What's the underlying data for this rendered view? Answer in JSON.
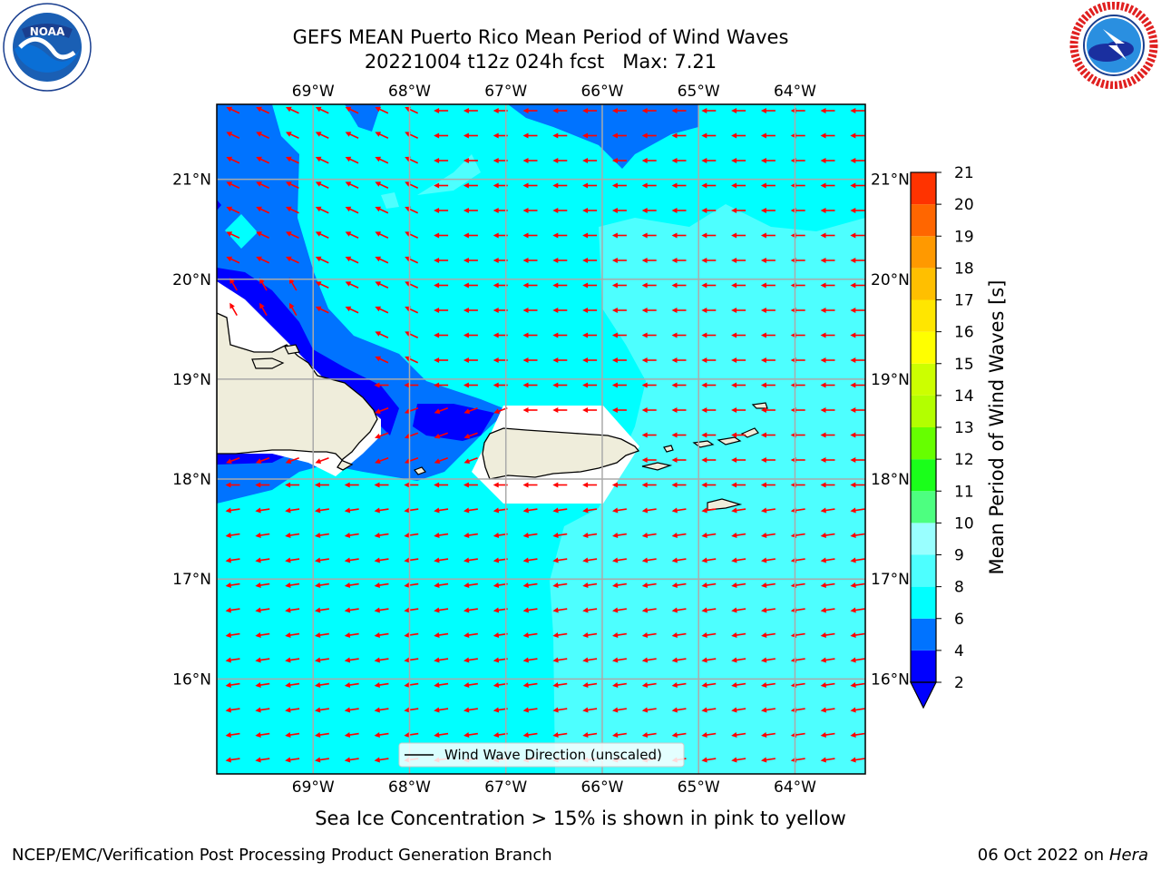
{
  "title_line1": "GEFS MEAN Puerto Rico Mean Period of Wind Waves",
  "title_line2": "20221004 t12z 024h fcst   Max: 7.21",
  "map": {
    "lon_labels": [
      "69°W",
      "68°W",
      "67°W",
      "66°W",
      "65°W",
      "64°W"
    ],
    "lon_values": [
      -69,
      -68,
      -67,
      -66,
      -65,
      -64
    ],
    "lat_labels": [
      "21°N",
      "20°N",
      "19°N",
      "18°N",
      "17°N",
      "16°N"
    ],
    "lat_values": [
      21,
      20,
      19,
      18,
      17,
      16
    ],
    "lon_range": [
      -70.0,
      -63.27
    ],
    "lat_range": [
      15.05,
      21.75
    ],
    "legend_label": "Wind Wave Direction (unscaled)",
    "ocean_color": "#00ffff",
    "arrow_color": "#ff0000"
  },
  "colorbar": {
    "label": "Mean Period of Wind Waves [s]",
    "ticks": [
      "2",
      "4",
      "6",
      "8",
      "9",
      "10",
      "11",
      "12",
      "13",
      "14",
      "15",
      "16",
      "17",
      "18",
      "19",
      "20",
      "21"
    ],
    "colors": [
      "#0000ff",
      "#0073ff",
      "#00ffff",
      "#4dffff",
      "#99ffff",
      "#4dff80",
      "#1aff1a",
      "#66ff00",
      "#b3ff00",
      "#ccff00",
      "#ffff00",
      "#ffe600",
      "#ffbf00",
      "#ff9900",
      "#ff6600",
      "#ff3300",
      "#ff0000"
    ],
    "extend_color": "#0000ff"
  },
  "ice_note": "Sea Ice Concentration > 15% is shown in pink to yellow",
  "footer_left": "NCEP/EMC/Verification Post Processing Product Generation Branch",
  "footer_right_date": "06 Oct 2022 on ",
  "footer_right_host": "Hera"
}
